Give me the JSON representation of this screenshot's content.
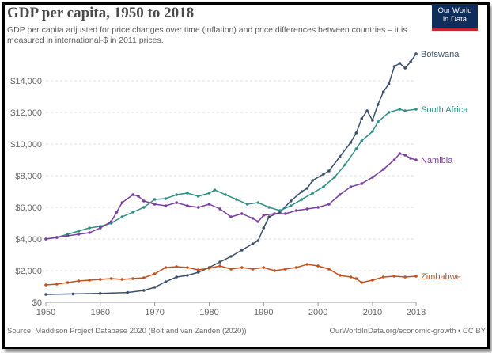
{
  "header": {
    "title": "GDP per capita, 1950 to 2018",
    "subtitle": "GDP per capita adjusted for price changes over time (inflation) and price differences between countries – it is measured in international-$ in 2011 prices.",
    "logo_line1": "Our World",
    "logo_line2": "in Data"
  },
  "footer": {
    "source": "Source: Maddison Project Database 2020 (Bolt and van Zanden (2020))",
    "credit": "OurWorldInData.org/economic-growth • CC BY"
  },
  "chart_data": {
    "type": "line",
    "title": "GDP per capita, 1950 to 2018",
    "xlabel": "",
    "ylabel": "",
    "xlim": [
      1950,
      2018
    ],
    "ylim": [
      0,
      16000
    ],
    "grid": "horizontal dashed",
    "legend": "labels at line ends (right)",
    "x_ticks": [
      1950,
      1960,
      1970,
      1980,
      1990,
      2000,
      2010,
      2018
    ],
    "y_ticks": [
      0,
      2000,
      4000,
      6000,
      8000,
      10000,
      12000,
      14000
    ],
    "y_tick_labels": [
      "$0",
      "$2,000",
      "$4,000",
      "$6,000",
      "$8,000",
      "$10,000",
      "$12,000",
      "$14,000"
    ],
    "series": [
      {
        "name": "Botswana",
        "color": "#3b4f6b",
        "points": [
          [
            1950,
            500
          ],
          [
            1955,
            530
          ],
          [
            1960,
            560
          ],
          [
            1965,
            620
          ],
          [
            1968,
            750
          ],
          [
            1970,
            950
          ],
          [
            1972,
            1300
          ],
          [
            1974,
            1600
          ],
          [
            1976,
            1700
          ],
          [
            1978,
            1900
          ],
          [
            1980,
            2200
          ],
          [
            1982,
            2550
          ],
          [
            1984,
            2900
          ],
          [
            1986,
            3300
          ],
          [
            1988,
            3700
          ],
          [
            1989,
            3900
          ],
          [
            1990,
            4700
          ],
          [
            1991,
            5400
          ],
          [
            1993,
            5700
          ],
          [
            1995,
            6400
          ],
          [
            1997,
            7000
          ],
          [
            1998,
            7200
          ],
          [
            1999,
            7700
          ],
          [
            2001,
            8100
          ],
          [
            2002,
            8300
          ],
          [
            2004,
            9200
          ],
          [
            2006,
            10100
          ],
          [
            2007,
            10700
          ],
          [
            2008,
            11600
          ],
          [
            2009,
            12100
          ],
          [
            2010,
            11500
          ],
          [
            2011,
            12500
          ],
          [
            2012,
            13300
          ],
          [
            2013,
            13800
          ],
          [
            2014,
            14900
          ],
          [
            2015,
            15100
          ],
          [
            2016,
            14800
          ],
          [
            2017,
            15200
          ],
          [
            2018,
            15700
          ]
        ]
      },
      {
        "name": "South Africa",
        "color": "#2f8f85",
        "points": [
          [
            1950,
            4000
          ],
          [
            1952,
            4100
          ],
          [
            1954,
            4300
          ],
          [
            1956,
            4500
          ],
          [
            1958,
            4700
          ],
          [
            1960,
            4800
          ],
          [
            1962,
            5000
          ],
          [
            1964,
            5400
          ],
          [
            1966,
            5700
          ],
          [
            1968,
            6000
          ],
          [
            1970,
            6500
          ],
          [
            1972,
            6550
          ],
          [
            1974,
            6800
          ],
          [
            1976,
            6900
          ],
          [
            1978,
            6700
          ],
          [
            1980,
            6900
          ],
          [
            1981,
            7100
          ],
          [
            1983,
            6800
          ],
          [
            1985,
            6500
          ],
          [
            1987,
            6200
          ],
          [
            1989,
            6300
          ],
          [
            1991,
            6000
          ],
          [
            1993,
            5800
          ],
          [
            1995,
            6100
          ],
          [
            1997,
            6500
          ],
          [
            1999,
            6900
          ],
          [
            2001,
            7300
          ],
          [
            2003,
            7900
          ],
          [
            2005,
            8700
          ],
          [
            2007,
            9700
          ],
          [
            2008,
            10200
          ],
          [
            2010,
            10800
          ],
          [
            2011,
            11400
          ],
          [
            2013,
            12000
          ],
          [
            2015,
            12200
          ],
          [
            2016,
            12100
          ],
          [
            2018,
            12200
          ]
        ]
      },
      {
        "name": "Namibia",
        "color": "#7a3f9a",
        "points": [
          [
            1950,
            4000
          ],
          [
            1952,
            4100
          ],
          [
            1954,
            4200
          ],
          [
            1956,
            4300
          ],
          [
            1958,
            4400
          ],
          [
            1960,
            4700
          ],
          [
            1962,
            5100
          ],
          [
            1963,
            5700
          ],
          [
            1964,
            6300
          ],
          [
            1966,
            6800
          ],
          [
            1967,
            6700
          ],
          [
            1968,
            6400
          ],
          [
            1970,
            6200
          ],
          [
            1972,
            6100
          ],
          [
            1974,
            6300
          ],
          [
            1976,
            6100
          ],
          [
            1978,
            6000
          ],
          [
            1980,
            6200
          ],
          [
            1982,
            5900
          ],
          [
            1984,
            5400
          ],
          [
            1986,
            5600
          ],
          [
            1988,
            5300
          ],
          [
            1989,
            5100
          ],
          [
            1990,
            5500
          ],
          [
            1992,
            5600
          ],
          [
            1994,
            5600
          ],
          [
            1996,
            5800
          ],
          [
            1998,
            5900
          ],
          [
            2000,
            6000
          ],
          [
            2002,
            6200
          ],
          [
            2004,
            6800
          ],
          [
            2006,
            7300
          ],
          [
            2008,
            7500
          ],
          [
            2010,
            7900
          ],
          [
            2012,
            8400
          ],
          [
            2014,
            9000
          ],
          [
            2015,
            9400
          ],
          [
            2016,
            9300
          ],
          [
            2017,
            9100
          ],
          [
            2018,
            9000
          ]
        ]
      },
      {
        "name": "Zimbabwe",
        "color": "#c4511c",
        "points": [
          [
            1950,
            1100
          ],
          [
            1952,
            1150
          ],
          [
            1954,
            1250
          ],
          [
            1956,
            1350
          ],
          [
            1958,
            1400
          ],
          [
            1960,
            1450
          ],
          [
            1962,
            1500
          ],
          [
            1964,
            1450
          ],
          [
            1966,
            1500
          ],
          [
            1968,
            1550
          ],
          [
            1970,
            1800
          ],
          [
            1972,
            2200
          ],
          [
            1974,
            2250
          ],
          [
            1976,
            2200
          ],
          [
            1978,
            2050
          ],
          [
            1980,
            2150
          ],
          [
            1982,
            2300
          ],
          [
            1984,
            2100
          ],
          [
            1986,
            2200
          ],
          [
            1988,
            2100
          ],
          [
            1990,
            2200
          ],
          [
            1992,
            2000
          ],
          [
            1994,
            2100
          ],
          [
            1996,
            2200
          ],
          [
            1998,
            2400
          ],
          [
            2000,
            2300
          ],
          [
            2002,
            2100
          ],
          [
            2004,
            1700
          ],
          [
            2006,
            1600
          ],
          [
            2007,
            1500
          ],
          [
            2008,
            1250
          ],
          [
            2010,
            1400
          ],
          [
            2012,
            1600
          ],
          [
            2014,
            1650
          ],
          [
            2016,
            1600
          ],
          [
            2018,
            1650
          ]
        ]
      }
    ]
  }
}
